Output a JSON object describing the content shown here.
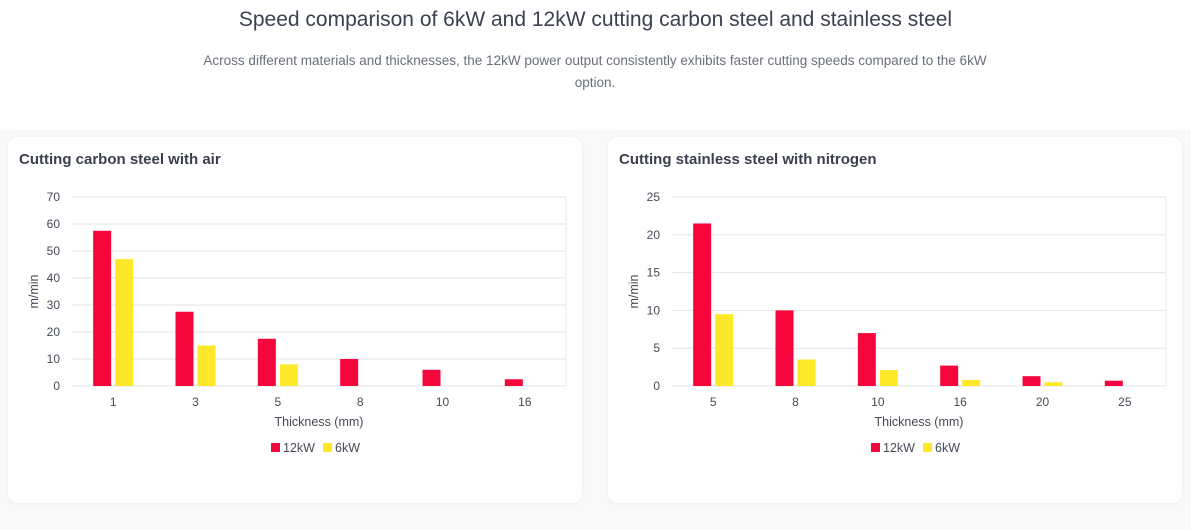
{
  "page": {
    "title": "Speed comparison of 6kW and 12kW cutting carbon steel and stainless steel",
    "subtitle": "Across different materials and thicknesses, the 12kW power output consistently exhibits faster cutting speeds compared to the 6kW option."
  },
  "colors": {
    "series_12kW": "#f5073d",
    "series_6kW": "#fde82a",
    "grid": "#e6e6e6"
  },
  "chart_data": [
    {
      "type": "bar",
      "title": "Cutting carbon steel with air",
      "xlabel": "Thickness (mm)",
      "ylabel": "m/min",
      "ylim": [
        0,
        70
      ],
      "yticks": [
        0,
        10,
        20,
        30,
        40,
        50,
        60,
        70
      ],
      "categories": [
        "1",
        "3",
        "5",
        "8",
        "10",
        "16"
      ],
      "series": [
        {
          "name": "12kW",
          "values": [
            57.5,
            27.5,
            17.5,
            10,
            6,
            2.5
          ]
        },
        {
          "name": "6kW",
          "values": [
            47,
            15,
            8,
            0,
            0,
            0
          ]
        }
      ],
      "legend": "bottom-center"
    },
    {
      "type": "bar",
      "title": "Cutting stainless steel with nitrogen",
      "xlabel": "Thickness (mm)",
      "ylabel": "m/min",
      "ylim": [
        0,
        25
      ],
      "yticks": [
        0,
        5,
        10,
        15,
        20,
        25
      ],
      "categories": [
        "5",
        "8",
        "10",
        "16",
        "20",
        "25"
      ],
      "series": [
        {
          "name": "12kW",
          "values": [
            21.5,
            10,
            7,
            2.7,
            1.3,
            0.7
          ]
        },
        {
          "name": "6kW",
          "values": [
            9.5,
            3.5,
            2.1,
            0.8,
            0.5,
            0
          ]
        }
      ],
      "legend": "bottom-center"
    }
  ]
}
